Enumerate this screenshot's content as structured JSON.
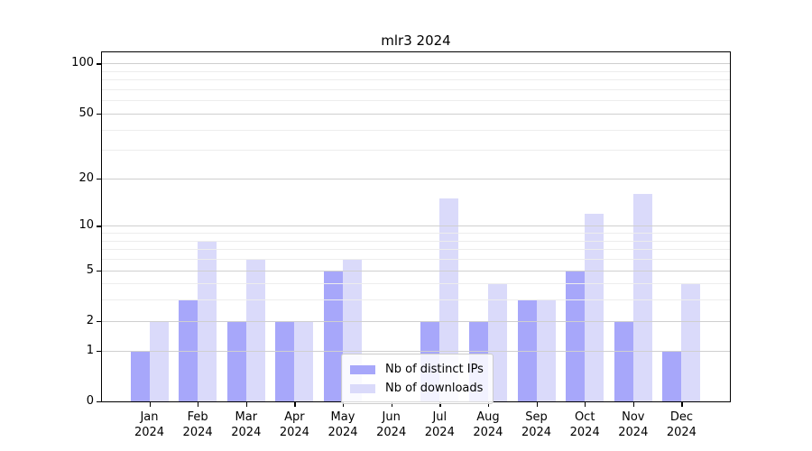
{
  "chart_data": {
    "type": "bar",
    "title": "mlr3 2024",
    "year_label": "2024",
    "categories": [
      "Jan",
      "Feb",
      "Mar",
      "Apr",
      "May",
      "Jun",
      "Jul",
      "Aug",
      "Sep",
      "Oct",
      "Nov",
      "Dec"
    ],
    "series": [
      {
        "name": "Nb of distinct IPs",
        "color": "#a7a7fa",
        "values": [
          1,
          3,
          2,
          2,
          5,
          0,
          2,
          2,
          3,
          5,
          2,
          1
        ]
      },
      {
        "name": "Nb of downloads",
        "color": "#dadafa",
        "values": [
          2,
          8,
          6,
          2,
          6,
          0,
          15,
          4,
          3,
          12,
          16,
          4
        ]
      }
    ],
    "xlabel": "",
    "ylabel": "",
    "yscale": "log1p",
    "ylim": [
      0,
      116.5
    ],
    "yticks": [
      0,
      1,
      2,
      5,
      10,
      20,
      50,
      100
    ],
    "minor_gridlines": [
      3,
      4,
      6,
      7,
      8,
      9,
      30,
      40,
      60,
      70,
      80,
      90
    ],
    "grid": "horizontal, drawn over bars",
    "legend_position": "inside lower-center"
  },
  "colors": {
    "background": "#ffffff",
    "axis": "#000000",
    "major_grid": "#cfcfcf",
    "minor_grid": "#ededed",
    "legend_border": "#cccccc"
  }
}
